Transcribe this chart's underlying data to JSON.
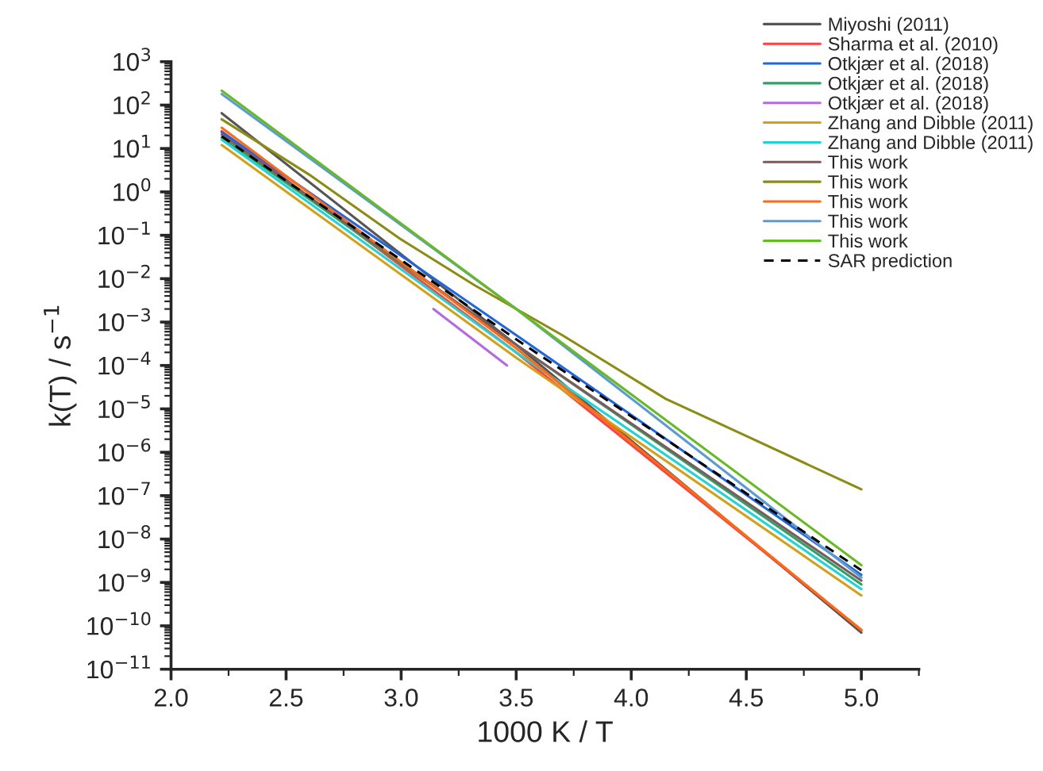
{
  "chart_data": {
    "type": "line",
    "xlabel": "1000 K / T",
    "ylabel": "k(T) / s$^{−1}$",
    "log": "y",
    "xlim": [
      2.0,
      5.25
    ],
    "xticks": [
      {
        "value": 2.0,
        "label": "2.0"
      },
      {
        "value": 2.5,
        "label": "2.5"
      },
      {
        "value": 3.0,
        "label": "3.0"
      },
      {
        "value": 3.5,
        "label": "3.5"
      },
      {
        "value": 4.0,
        "label": "4.0"
      },
      {
        "value": 4.5,
        "label": "4.5"
      },
      {
        "value": 5.0,
        "label": "5.0"
      }
    ],
    "ylim": [
      1e-11,
      1000
    ],
    "yticks": [
      {
        "value": 1e-11,
        "label": "10$^{−11}$"
      },
      {
        "value": 1e-10,
        "label": "10$^{−10}$"
      },
      {
        "value": 1e-09,
        "label": "10$^{−9}$"
      },
      {
        "value": 1e-08,
        "label": "10$^{−8}$"
      },
      {
        "value": 1e-07,
        "label": "10$^{−7}$"
      },
      {
        "value": 1e-06,
        "label": "10$^{−6}$"
      },
      {
        "value": 1e-05,
        "label": "10$^{−5}$"
      },
      {
        "value": 0.0001,
        "label": "10$^{−4}$"
      },
      {
        "value": 0.001,
        "label": "10$^{−3}$"
      },
      {
        "value": 0.01,
        "label": "10$^{−2}$"
      },
      {
        "value": 0.1,
        "label": "10$^{−1}$"
      },
      {
        "value": 1,
        "label": "10$^{0}$"
      },
      {
        "value": 10,
        "label": "10$^{1}$"
      },
      {
        "value": 100,
        "label": "10$^{2}$"
      },
      {
        "value": 1000,
        "label": "10$^{3}$"
      }
    ],
    "grid": false,
    "legend": "top right",
    "line_style": "solid",
    "marker": "none",
    "series": [
      {
        "name": "Miyoshi (2011)",
        "color": "#555555",
        "x": [
          2.22,
          3.5,
          5.0
        ],
        "values": [
          65,
          0.0003,
          7e-11
        ]
      },
      {
        "name": "Sharma et al. (2010)",
        "color": "#ff4040",
        "x": [
          2.22,
          3.5,
          5.0
        ],
        "values": [
          25,
          0.0002,
          8e-11
        ]
      },
      {
        "name": "Otkjær et al. (2018)",
        "color": "#1f66e0",
        "x": [
          2.22,
          3.5,
          5.0
        ],
        "values": [
          24,
          0.0005,
          1.5e-09
        ]
      },
      {
        "name": "Otkjær et al. (2018)",
        "color": "#2aa366",
        "x": [
          2.22,
          3.5,
          5.0
        ],
        "values": [
          18,
          0.0003,
          9e-10
        ]
      },
      {
        "name": "Otkjær et al. (2018)",
        "color": "#b36ae2",
        "x": [
          3.14,
          3.46
        ],
        "values": [
          0.002,
          0.0001
        ]
      },
      {
        "name": "Zhang and Dibble (2011)",
        "color": "#d4a017",
        "x": [
          2.22,
          3.5,
          5.0
        ],
        "values": [
          12,
          0.00015,
          5e-10
        ]
      },
      {
        "name": "Zhang and Dibble (2011)",
        "color": "#1fd4d4",
        "x": [
          2.22,
          3.5,
          5.0
        ],
        "values": [
          16,
          0.0002,
          7e-10
        ]
      },
      {
        "name": "This work",
        "color": "#7f5a5a",
        "x": [
          2.22,
          3.5,
          5.0
        ],
        "values": [
          21,
          0.0003,
          1.1e-09
        ]
      },
      {
        "name": "This work",
        "color": "#8c8c14",
        "x": [
          2.22,
          2.6,
          3.0,
          3.32,
          3.7,
          4.15,
          4.47,
          5.0
        ],
        "values": [
          47,
          2.5,
          0.08,
          0.007,
          0.0005,
          1.7e-05,
          2.8e-06,
          1.4e-07
        ]
      },
      {
        "name": "This work",
        "color": "#ff6a14",
        "x": [
          2.22,
          3.5,
          5.0
        ],
        "values": [
          30,
          0.00025,
          8e-11
        ]
      },
      {
        "name": "This work",
        "color": "#5b9bd5",
        "x": [
          2.22,
          3.5,
          5.0
        ],
        "values": [
          180,
          0.002,
          1.3e-09
        ]
      },
      {
        "name": "This work",
        "color": "#66bb22",
        "x": [
          2.22,
          3.5,
          5.0
        ],
        "values": [
          215,
          0.002,
          2.5e-09
        ]
      },
      {
        "name": "SAR prediction",
        "color": "#000000",
        "line_style": "dashed",
        "x": [
          2.22,
          3.5,
          5.0
        ],
        "values": [
          19,
          0.0004,
          1.9e-09
        ]
      }
    ]
  }
}
